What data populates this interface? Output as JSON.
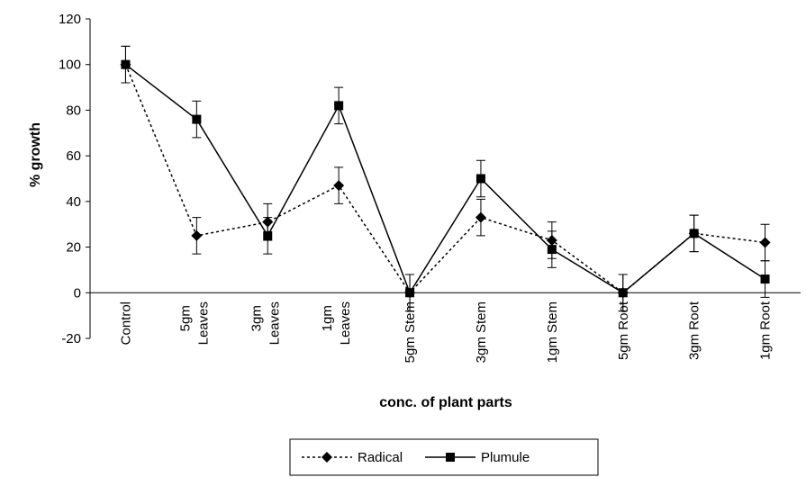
{
  "chart_data": {
    "type": "line",
    "x_label": "conc. of plant parts",
    "y_label": "% growth",
    "categories": [
      "Control",
      "5gm Leaves",
      "3gm Leaves",
      "1gm Leaves",
      "5gm Stem",
      "3gm Stem",
      "1gm Stem",
      "5gm Root",
      "3gm Root",
      "1gm Root"
    ],
    "series": [
      {
        "name": "Radical",
        "color": "#000000",
        "dash": "dotted",
        "marker": "diamond",
        "values": [
          100,
          25,
          31,
          47,
          0,
          33,
          23,
          0,
          26,
          22
        ],
        "errors": [
          8,
          8,
          8,
          8,
          8,
          8,
          8,
          8,
          8,
          8
        ]
      },
      {
        "name": "Plumule",
        "color": "#000000",
        "dash": "solid",
        "marker": "square",
        "values": [
          100,
          76,
          25,
          82,
          0,
          50,
          19,
          0,
          26,
          6
        ],
        "errors": [
          8,
          8,
          8,
          8,
          8,
          8,
          8,
          8,
          8,
          8
        ]
      }
    ],
    "ylim": [
      -20,
      120
    ],
    "yticks": [
      -20,
      0,
      20,
      40,
      60,
      80,
      100,
      120
    ],
    "legend": "bottom"
  }
}
